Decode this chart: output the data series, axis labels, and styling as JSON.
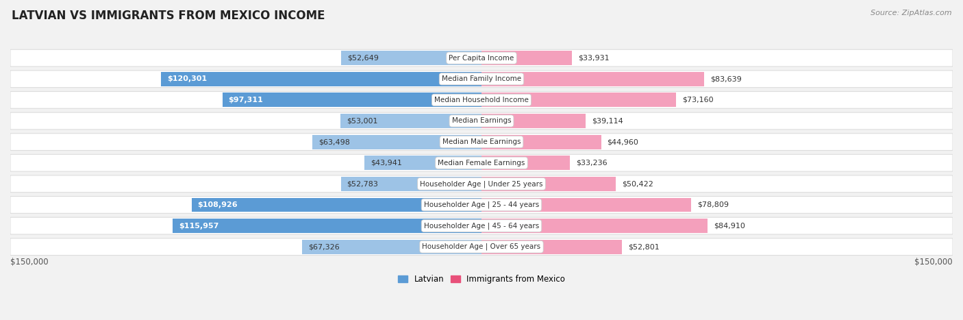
{
  "title": "LATVIAN VS IMMIGRANTS FROM MEXICO INCOME",
  "source": "Source: ZipAtlas.com",
  "categories": [
    "Per Capita Income",
    "Median Family Income",
    "Median Household Income",
    "Median Earnings",
    "Median Male Earnings",
    "Median Female Earnings",
    "Householder Age | Under 25 years",
    "Householder Age | 25 - 44 years",
    "Householder Age | 45 - 64 years",
    "Householder Age | Over 65 years"
  ],
  "latvian_values": [
    52649,
    120301,
    97311,
    53001,
    63498,
    43941,
    52783,
    108926,
    115957,
    67326
  ],
  "mexico_values": [
    33931,
    83639,
    73160,
    39114,
    44960,
    33236,
    50422,
    78809,
    84910,
    52801
  ],
  "latvian_labels": [
    "$52,649",
    "$120,301",
    "$97,311",
    "$53,001",
    "$63,498",
    "$43,941",
    "$52,783",
    "$108,926",
    "$115,957",
    "$67,326"
  ],
  "mexico_labels": [
    "$33,931",
    "$83,639",
    "$73,160",
    "$39,114",
    "$44,960",
    "$33,236",
    "$50,422",
    "$78,809",
    "$84,910",
    "$52,801"
  ],
  "latvian_color_dark": "#5B9BD5",
  "latvian_color_light": "#9DC3E6",
  "mexico_color_dark": "#E8507A",
  "mexico_color_light": "#F4A0BC",
  "axis_limit": 150000,
  "bg_color": "#f2f2f2",
  "row_bg": "#ffffff",
  "row_edge": "#dddddd",
  "title_fontsize": 12,
  "source_fontsize": 8,
  "bar_label_fontsize": 8,
  "category_fontsize": 7.5,
  "axis_label_fontsize": 8.5,
  "dark_threshold": 0.58
}
